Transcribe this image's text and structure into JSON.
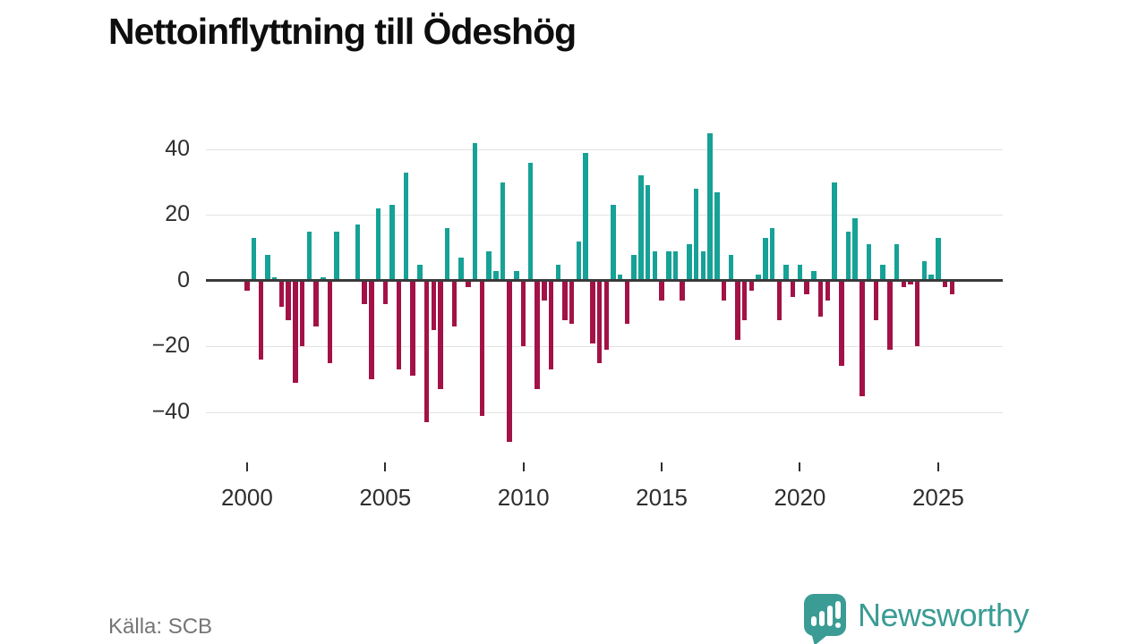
{
  "title": "Nettoinflyttning till Ödeshög",
  "source_label": "Källa: SCB",
  "brand_name": "Newsworthy",
  "colors": {
    "positive": "#16a296",
    "negative": "#a31246",
    "axis": "#3a3a3a",
    "grid": "#e3e3e3",
    "text": "#2e2e2e",
    "muted": "#757575",
    "brand": "#3a9c94"
  },
  "chart_data": {
    "type": "bar",
    "title": "Nettoinflyttning till Ödeshög",
    "unit": "persons per quarter (net migration)",
    "frequency": "quarterly",
    "start_period": "2000Q1",
    "x_ticks": [
      {
        "label": "2000",
        "quarter_index": 0
      },
      {
        "label": "2005",
        "quarter_index": 20
      },
      {
        "label": "2010",
        "quarter_index": 40
      },
      {
        "label": "2015",
        "quarter_index": 60
      },
      {
        "label": "2020",
        "quarter_index": 80
      },
      {
        "label": "2025",
        "quarter_index": 100
      }
    ],
    "yticks": [
      40,
      20,
      0,
      -20,
      -40
    ],
    "ytick_labels": [
      "40",
      "20",
      "0",
      "−20",
      "−40"
    ],
    "ylim": [
      -52,
      47
    ],
    "grid": true,
    "legend": false,
    "values": [
      -3,
      13,
      -24,
      8,
      1,
      -8,
      -12,
      -31,
      -20,
      15,
      -14,
      1,
      -25,
      15,
      0,
      0,
      17,
      -7,
      -30,
      22,
      -7,
      23,
      -27,
      33,
      -29,
      5,
      -43,
      -15,
      -33,
      16,
      -14,
      7,
      -2,
      42,
      -41,
      9,
      3,
      30,
      -49,
      3,
      -20,
      36,
      -33,
      -6,
      -27,
      5,
      -12,
      -13,
      12,
      39,
      -19,
      -25,
      -21,
      23,
      2,
      -13,
      8,
      32,
      29,
      9,
      -6,
      9,
      9,
      -6,
      11,
      28,
      9,
      45,
      27,
      -6,
      8,
      -18,
      -12,
      -3,
      2,
      13,
      16,
      -12,
      5,
      -5,
      5,
      -4,
      3,
      -11,
      -6,
      30,
      -26,
      15,
      19,
      -35,
      11,
      -12,
      5,
      -21,
      11,
      -2,
      -1,
      -20,
      6,
      2,
      13,
      -2,
      -4
    ]
  }
}
